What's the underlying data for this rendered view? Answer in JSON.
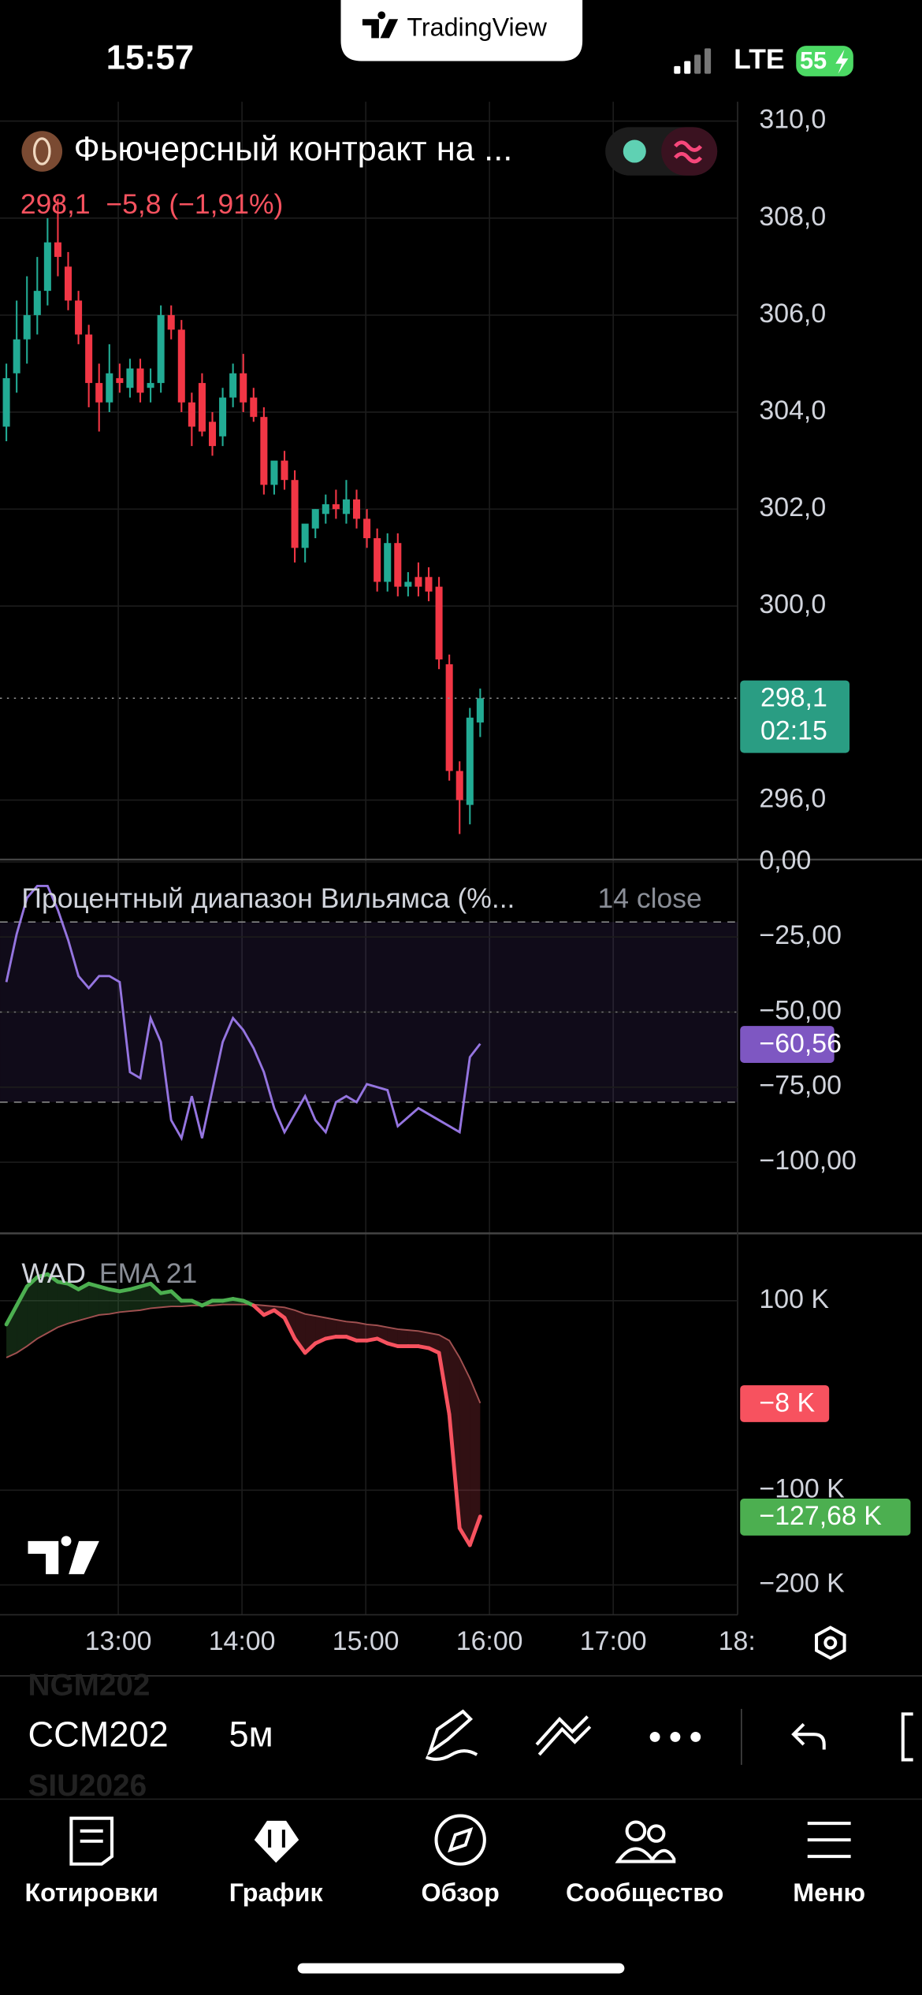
{
  "status_bar": {
    "time": "15:57",
    "network": "LTE",
    "battery": "55"
  },
  "app_badge": "TradingView",
  "header": {
    "title": "Фьючерсный контракт на ...",
    "price_line": "298,1  −5,8 (−1,91%)"
  },
  "time_axis": {
    "ticks": [
      "13:00",
      "14:00",
      "15:00",
      "16:00",
      "17:00",
      "18:"
    ]
  },
  "price_pane": {
    "ylim": [
      294.8,
      310.4
    ],
    "yticks": [
      {
        "value": 310,
        "label": "310,0"
      },
      {
        "value": 308,
        "label": "308,0"
      },
      {
        "value": 306,
        "label": "306,0"
      },
      {
        "value": 304,
        "label": "304,0"
      },
      {
        "value": 302,
        "label": "302,0"
      },
      {
        "value": 300,
        "label": "300,0"
      },
      {
        "value": 296,
        "label": "296,0"
      }
    ],
    "candles": {
      "open": [
        303.7,
        304.8,
        305.5,
        306,
        306.5,
        307.5,
        307,
        306.3,
        305.6,
        304.6,
        304.2,
        304.7,
        304.5,
        304.9,
        304.5,
        304.6,
        306,
        305.7,
        304.2,
        304.6,
        303.8,
        303.5,
        304.3,
        304.8,
        304.3,
        303.9,
        302.5,
        303,
        302.6,
        301.2,
        301.6,
        301.9,
        302.1,
        301.9,
        302.2,
        301.8,
        301.4,
        300.5,
        301.3,
        300.4,
        300.6,
        300.6,
        300.4,
        298.8,
        296.6,
        295.9,
        297.6
      ],
      "high": [
        305,
        306.3,
        306.8,
        307.2,
        308,
        308.4,
        307.3,
        306.5,
        305.8,
        305,
        305.4,
        305,
        305.1,
        305.1,
        304.9,
        306.2,
        306.2,
        305.9,
        304.4,
        304.8,
        304,
        304.5,
        305,
        305.2,
        304.5,
        304.1,
        302.7,
        303.2,
        302.8,
        301.5,
        302,
        302.3,
        302.4,
        302.6,
        302.4,
        302,
        301.6,
        301.5,
        301.5,
        300.7,
        300.9,
        300.8,
        300.6,
        299,
        296.8,
        297.9,
        298.3
      ],
      "low": [
        303.4,
        304.4,
        305,
        305.6,
        306.2,
        306.8,
        306.1,
        305.4,
        304.1,
        303.6,
        304,
        304.4,
        304.3,
        304.2,
        304.2,
        304.4,
        305.5,
        304,
        303.3,
        303.5,
        303.1,
        303.3,
        304.1,
        304,
        303.8,
        302.3,
        302.3,
        302.4,
        300.9,
        300.9,
        301.4,
        301.7,
        301.8,
        301.7,
        301.6,
        301.2,
        300.3,
        300.3,
        300.2,
        300.2,
        300.2,
        300.1,
        298.7,
        296.4,
        295.3,
        295.5,
        297.3
      ],
      "close": [
        304.7,
        305.5,
        306,
        306.5,
        307.5,
        307.2,
        306.3,
        305.6,
        304.6,
        304.2,
        304.8,
        304.6,
        304.9,
        304.4,
        304.6,
        306,
        305.7,
        304.2,
        303.7,
        303.6,
        303.3,
        304.3,
        304.8,
        304.2,
        303.9,
        302.5,
        303,
        302.6,
        301.2,
        301.7,
        302,
        302.1,
        302,
        302.2,
        301.8,
        301.4,
        300.5,
        301.3,
        300.4,
        300.5,
        300.4,
        300.3,
        298.9,
        296.6,
        296,
        297.7,
        298.1
      ]
    },
    "last": {
      "value": 298.1,
      "label": "298,1"
    },
    "countdown": "02:15"
  },
  "wpr_pane": {
    "title": "Процентный диапазон Вильямса (%...",
    "params": "14 close",
    "ylim": [
      -123.7,
      0.8
    ],
    "yticks": [
      {
        "value": 0,
        "label": "0,00"
      },
      {
        "value": -25,
        "label": "−25,00"
      },
      {
        "value": -50,
        "label": "−50,00"
      },
      {
        "value": -75,
        "label": "−75,00"
      },
      {
        "value": -100,
        "label": "−100,00"
      }
    ],
    "bands": [
      -20,
      -80
    ],
    "mid": -50,
    "values": [
      -40,
      -24,
      -12,
      -8,
      -8,
      -16,
      -26,
      -38,
      -42,
      -38,
      -38,
      -40,
      -70,
      -72,
      -52,
      -60,
      -86,
      -92,
      -78,
      -92,
      -76,
      -60,
      -52,
      -56,
      -62,
      -70,
      -82,
      -90,
      -84,
      -78,
      -86,
      -90,
      -80,
      -78,
      -80,
      -74,
      -75,
      -76,
      -88,
      -85,
      -82,
      -84,
      -86,
      -88,
      -90,
      -65,
      -60.56
    ],
    "last": {
      "value": -60.56,
      "label": "−60,56"
    }
  },
  "wad_pane": {
    "title": "WAD",
    "ema_label": "EMA 21",
    "ylim": [
      -231500,
      171100
    ],
    "yticks": [
      {
        "value": 100000,
        "label": "100 K"
      },
      {
        "value": -100000,
        "label": "−100 K"
      },
      {
        "value": -200000,
        "label": "−200 K"
      }
    ],
    "wad": [
      75000,
      95000,
      115000,
      125000,
      128000,
      120000,
      118000,
      112000,
      118000,
      115000,
      112000,
      110000,
      112000,
      115000,
      118000,
      108000,
      110000,
      100000,
      100000,
      95000,
      100000,
      100000,
      102000,
      100000,
      95000,
      85000,
      90000,
      82000,
      60000,
      45000,
      55000,
      60000,
      62000,
      62000,
      58000,
      58000,
      60000,
      55000,
      52000,
      52000,
      52000,
      50000,
      45000,
      -20000,
      -140000,
      -158000,
      -127680
    ],
    "ema": [
      40000,
      45000,
      52000,
      60000,
      66000,
      72000,
      76000,
      79000,
      82000,
      85000,
      86000,
      88000,
      89000,
      90000,
      92000,
      93000,
      94000,
      94000,
      95000,
      95000,
      95000,
      96000,
      96000,
      96000,
      96000,
      95000,
      94000,
      93000,
      90000,
      86000,
      84000,
      82000,
      80000,
      78000,
      77000,
      75000,
      74000,
      72000,
      70000,
      69000,
      68000,
      66000,
      64000,
      58000,
      40000,
      18000,
      -8000
    ],
    "wad_last": {
      "value": -127680,
      "label": "−127,68 K"
    },
    "ema_last": {
      "value": -8000,
      "label": "−8 K"
    }
  },
  "toolbar": {
    "symbols": [
      "NGM202",
      "CCM202",
      "SIU2026"
    ],
    "interval": "5м"
  },
  "nav": [
    "Котировки",
    "График",
    "Обзор",
    "Сообщество",
    "Меню"
  ]
}
